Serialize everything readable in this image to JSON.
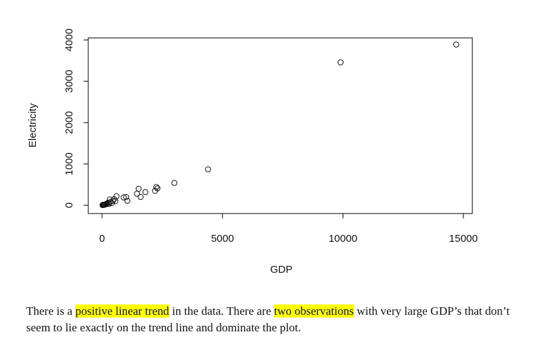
{
  "chart_data": {
    "type": "scatter",
    "xlabel": "GDP",
    "ylabel": "Electricity",
    "xlim": [
      0,
      15000
    ],
    "ylim": [
      0,
      4000
    ],
    "x_ticks": [
      0,
      5000,
      10000,
      15000
    ],
    "y_ticks": [
      0,
      1000,
      2000,
      3000,
      4000
    ],
    "grid": false,
    "marker": "open-circle",
    "points": [
      {
        "x": 20,
        "y": 5
      },
      {
        "x": 40,
        "y": 10
      },
      {
        "x": 60,
        "y": 8
      },
      {
        "x": 80,
        "y": 15
      },
      {
        "x": 100,
        "y": 12
      },
      {
        "x": 120,
        "y": 20
      },
      {
        "x": 150,
        "y": 25
      },
      {
        "x": 180,
        "y": 30
      },
      {
        "x": 200,
        "y": 40
      },
      {
        "x": 250,
        "y": 60
      },
      {
        "x": 280,
        "y": 35
      },
      {
        "x": 320,
        "y": 140
      },
      {
        "x": 350,
        "y": 80
      },
      {
        "x": 400,
        "y": 50
      },
      {
        "x": 450,
        "y": 110
      },
      {
        "x": 500,
        "y": 150
      },
      {
        "x": 550,
        "y": 100
      },
      {
        "x": 600,
        "y": 220
      },
      {
        "x": 900,
        "y": 190
      },
      {
        "x": 1000,
        "y": 200
      },
      {
        "x": 1050,
        "y": 110
      },
      {
        "x": 1450,
        "y": 280
      },
      {
        "x": 1520,
        "y": 400
      },
      {
        "x": 1600,
        "y": 200
      },
      {
        "x": 1800,
        "y": 320
      },
      {
        "x": 2200,
        "y": 350
      },
      {
        "x": 2250,
        "y": 440
      },
      {
        "x": 2300,
        "y": 410
      },
      {
        "x": 3000,
        "y": 540
      },
      {
        "x": 4400,
        "y": 870
      },
      {
        "x": 9900,
        "y": 3460
      },
      {
        "x": 14700,
        "y": 3890
      }
    ]
  },
  "caption": {
    "t1": "There is a ",
    "h1": "positive linear trend",
    "t2": " in the data. There are ",
    "h2": "two observations",
    "t3": " with very large GDP’s that don’t seem to lie exactly on the trend line and dominate the plot."
  }
}
